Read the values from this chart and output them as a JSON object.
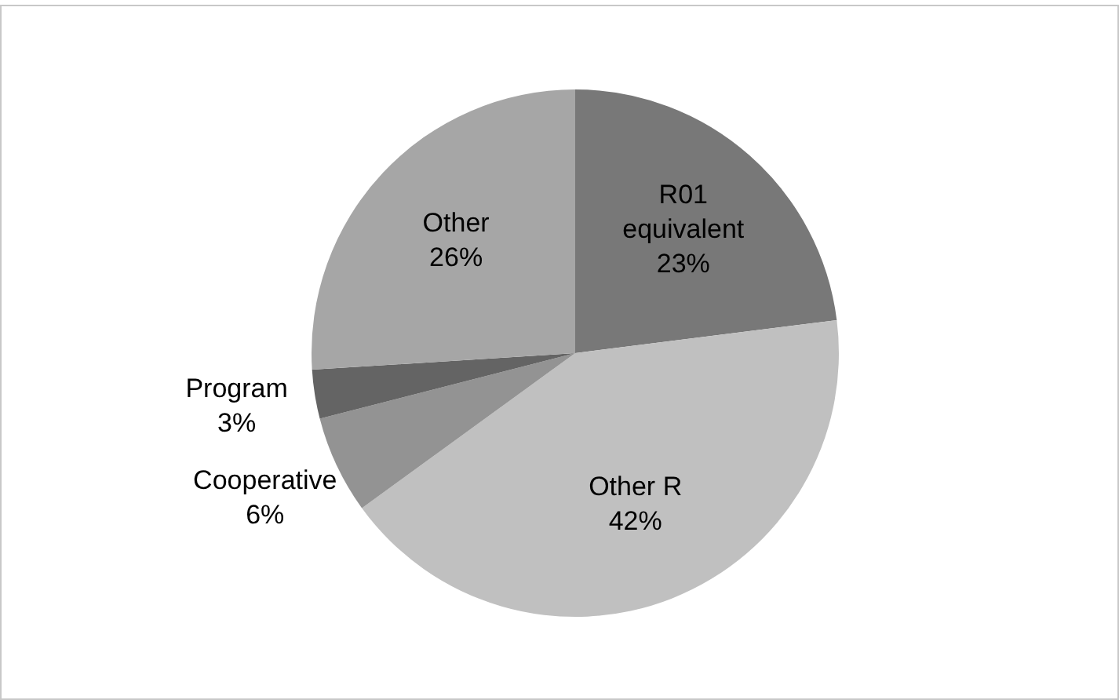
{
  "chart_data": {
    "type": "pie",
    "categories": [
      "R01 equivalent",
      "Other R",
      "Cooperative",
      "Program",
      "Other"
    ],
    "values": [
      23,
      42,
      6,
      3,
      26
    ],
    "value_labels": [
      "23%",
      "42%",
      "6%",
      "3%",
      "26%"
    ],
    "colors": [
      "#787878",
      "#c0c0c0",
      "#939393",
      "#646464",
      "#a6a6a6"
    ],
    "legend": false
  }
}
